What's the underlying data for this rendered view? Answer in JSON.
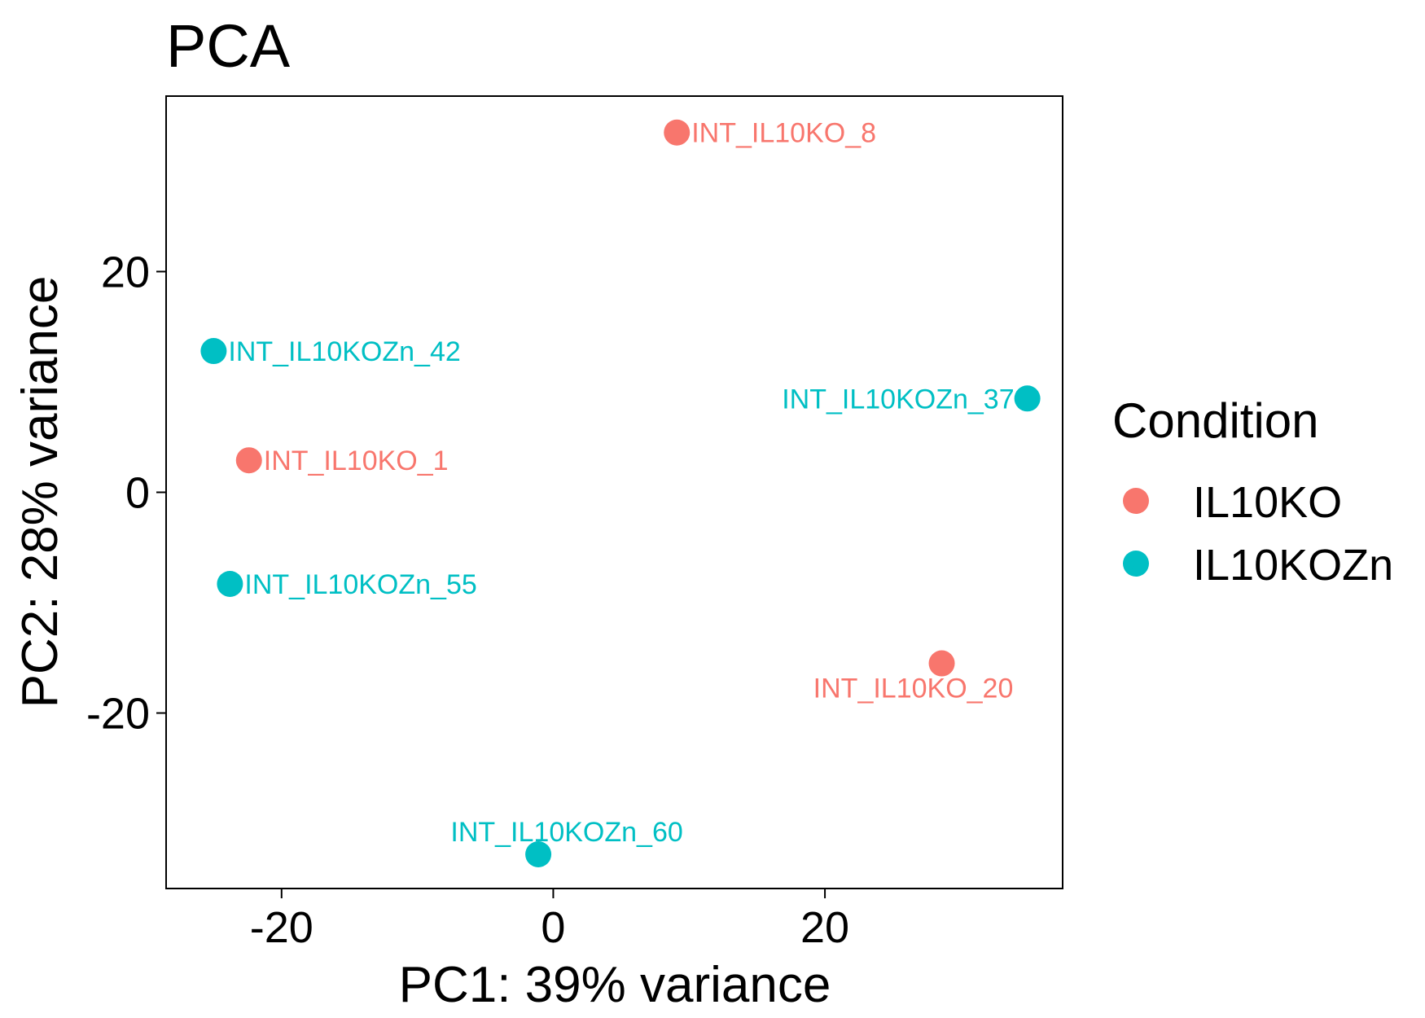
{
  "chart_data": {
    "type": "scatter",
    "title": "PCA",
    "xlabel": "PC1: 39% variance",
    "ylabel": "PC2: 28% variance",
    "xlim": [
      -28.5,
      37.5
    ],
    "ylim": [
      -35.9,
      35.9
    ],
    "xticks": [
      -20,
      0,
      20
    ],
    "yticks": [
      -20,
      0,
      20
    ],
    "xtick_labels": [
      "-20",
      "0",
      "20"
    ],
    "ytick_labels": [
      "-20",
      "0",
      "20"
    ],
    "grid": false,
    "legend": {
      "title": "Condition",
      "position": "right",
      "entries": [
        {
          "label": "IL10KO",
          "color": "#F8766D"
        },
        {
          "label": "IL10KOZn",
          "color": "#00BFC4"
        }
      ]
    },
    "series": [
      {
        "name": "IL10KO",
        "color": "#F8766D",
        "points": [
          {
            "x": 9.1,
            "y": 32.6,
            "label": "INT_IL10KO_8",
            "label_side": "right"
          },
          {
            "x": -22.4,
            "y": 2.9,
            "label": "INT_IL10KO_1",
            "label_side": "right"
          },
          {
            "x": 28.6,
            "y": -15.5,
            "label": "INT_IL10KO_20",
            "label_side": "below"
          }
        ]
      },
      {
        "name": "IL10KOZn",
        "color": "#00BFC4",
        "points": [
          {
            "x": -25.0,
            "y": 12.8,
            "label": "INT_IL10KOZn_42",
            "label_side": "right"
          },
          {
            "x": 34.9,
            "y": 8.5,
            "label": "INT_IL10KOZn_37",
            "label_side": "left"
          },
          {
            "x": -23.8,
            "y": -8.3,
            "label": "INT_IL10KOZn_55",
            "label_side": "right"
          },
          {
            "x": -1.1,
            "y": -32.8,
            "label": "INT_IL10KOZn_60",
            "label_side": "above"
          }
        ]
      }
    ]
  }
}
